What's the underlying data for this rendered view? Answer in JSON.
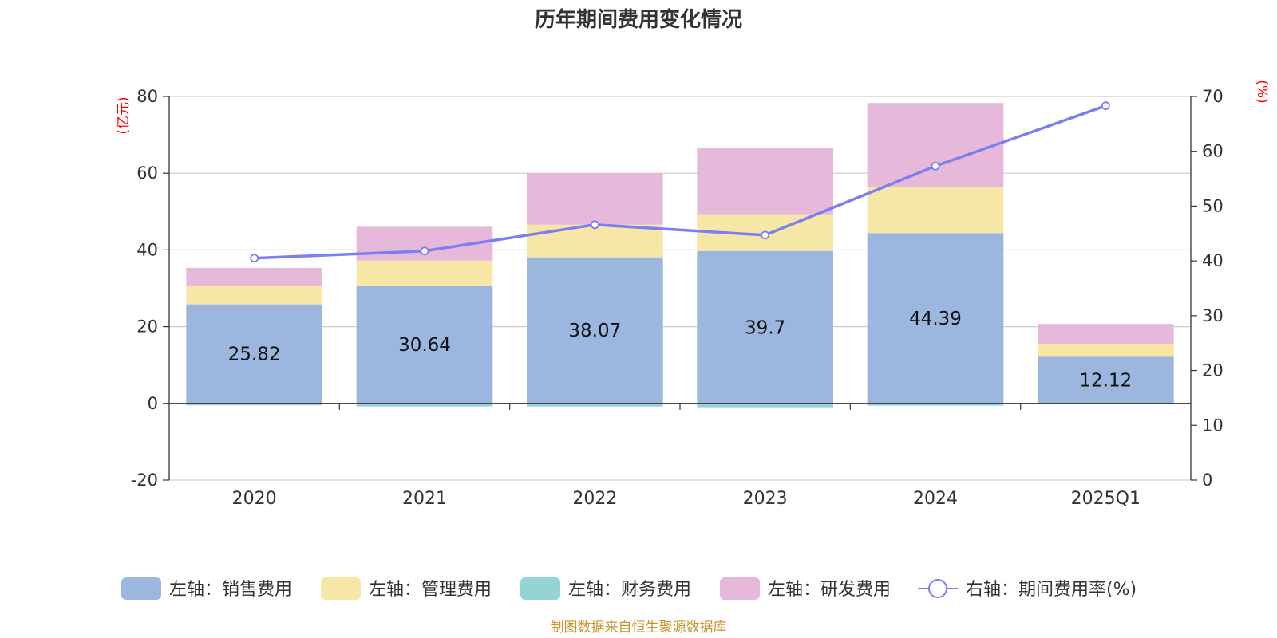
{
  "chart_data": {
    "type": "bar",
    "stacked": true,
    "title": "历年期间费用变化情况",
    "left_axis_unit": "(亿元)",
    "right_axis_unit": "(%)",
    "categories": [
      "2020",
      "2021",
      "2022",
      "2023",
      "2024",
      "2025Q1"
    ],
    "left_ylim": [
      -20,
      80
    ],
    "left_ticks": [
      "80",
      "60",
      "40",
      "20",
      "0",
      "-20"
    ],
    "right_ylim": [
      0,
      70
    ],
    "right_ticks": [
      "70",
      "60",
      "50",
      "40",
      "30",
      "20",
      "10",
      "0"
    ],
    "grid": true,
    "series": [
      {
        "name": "左轴：销售费用",
        "axis": "left",
        "kind": "bar",
        "color": "#9bb7e0",
        "values": [
          25.82,
          30.64,
          38.07,
          39.7,
          44.39,
          12.12
        ],
        "labels": [
          "25.82",
          "30.64",
          "38.07",
          "39.7",
          "44.39",
          "12.12"
        ]
      },
      {
        "name": "左轴：管理费用",
        "axis": "left",
        "kind": "bar",
        "color": "#f7e7a6",
        "values": [
          4.7,
          6.6,
          8.5,
          9.6,
          12.1,
          3.4
        ]
      },
      {
        "name": "左轴：财务费用",
        "axis": "left",
        "kind": "bar",
        "color": "#95d4d4",
        "values": [
          -0.5,
          -0.8,
          -0.8,
          -1.0,
          -0.6,
          -0.1
        ]
      },
      {
        "name": "左轴：研发费用",
        "axis": "left",
        "kind": "bar",
        "color": "#e6b8d9",
        "values": [
          4.8,
          8.8,
          13.4,
          17.3,
          21.8,
          5.2
        ]
      },
      {
        "name": "右轴：期间费用率(%)",
        "axis": "right",
        "kind": "line",
        "color": "#7b7ff0",
        "values": [
          40.5,
          41.8,
          46.6,
          44.7,
          57.3,
          68.3
        ]
      }
    ],
    "legend_position": "bottom",
    "source": "制图数据来自恒生聚源数据库"
  }
}
